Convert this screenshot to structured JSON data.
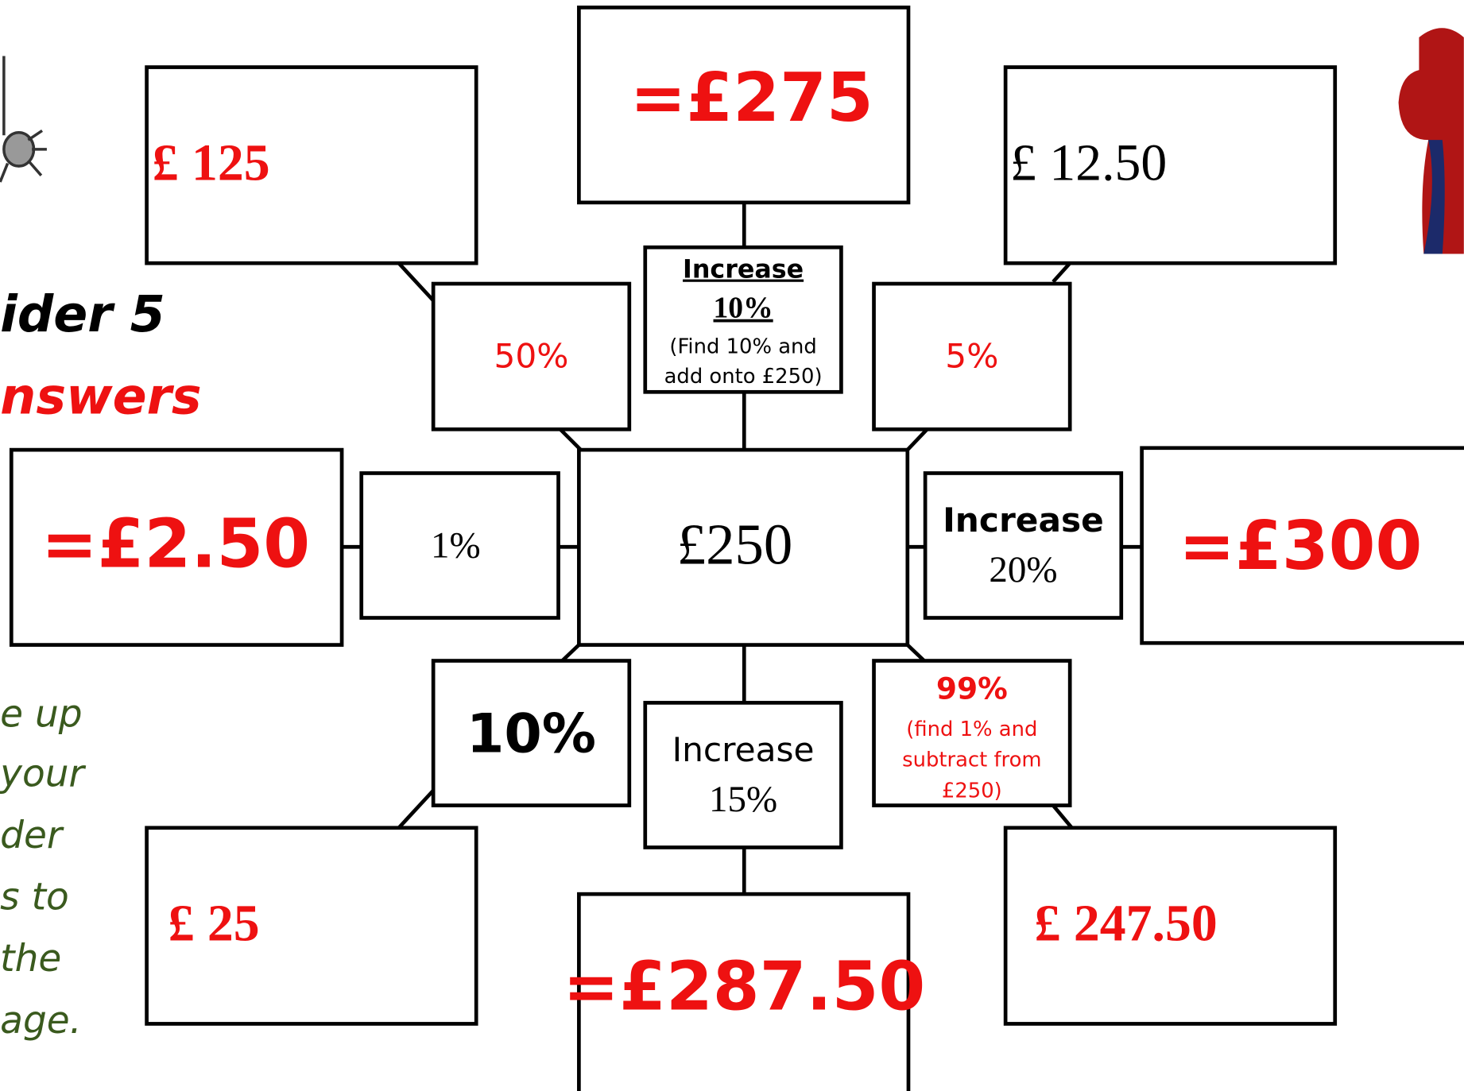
{
  "heading": {
    "title": "ider 5",
    "subtitle": "nswers"
  },
  "instructions": [
    "e up",
    "your",
    "der",
    "s to",
    "the",
    "age."
  ],
  "center": "£250",
  "nodes": [
    {
      "operation": [
        "50%"
      ],
      "answer": "£ 125"
    },
    {
      "operation": [
        "Increase",
        "10%",
        "(Find 10% and",
        "add onto £250)"
      ],
      "answer": "=£275"
    },
    {
      "operation": [
        "5%"
      ],
      "answer": "£ 12.50"
    },
    {
      "operation": [
        "1%"
      ],
      "answer": "=£2.50"
    },
    {
      "operation": [
        "Increase",
        "20%"
      ],
      "answer": "=£300"
    },
    {
      "operation": [
        "10%"
      ],
      "answer": "£ 25"
    },
    {
      "operation": [
        "Increase",
        "15%"
      ],
      "answer": "=£287.50"
    },
    {
      "operation": [
        "99%",
        "(find 1% and",
        "subtract from",
        "£250)"
      ],
      "answer": "£ 247.50"
    }
  ]
}
